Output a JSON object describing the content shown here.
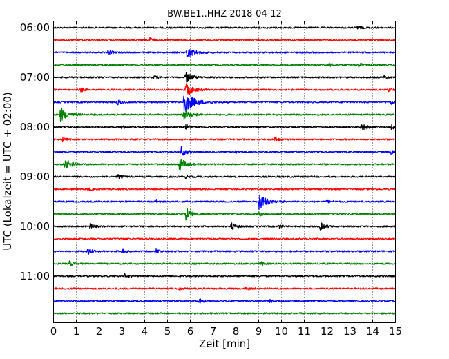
{
  "chart_data": {
    "type": "line",
    "title": "BW.BE1..HHZ 2018-04-12",
    "xlabel": "Zeit  [min]",
    "ylabel": "UTC (Lokalzeit = UTC + 02:00)",
    "xlim": [
      0,
      15
    ],
    "x_ticks": [
      "0",
      "1",
      "2",
      "3",
      "4",
      "5",
      "6",
      "7",
      "8",
      "9",
      "10",
      "11",
      "12",
      "13",
      "14",
      "15"
    ],
    "y_ticks": [
      "06:00",
      "07:00",
      "08:00",
      "09:00",
      "10:00",
      "11:00"
    ],
    "trace_interval_min": 15,
    "grid": "vertical dotted",
    "series_colors": [
      "#000000",
      "#ff0000",
      "#0000ff",
      "#008000"
    ],
    "traces": [
      {
        "start": "06:00",
        "color": "#000000",
        "events": [
          {
            "t": 13.3,
            "amp": 0.5
          }
        ]
      },
      {
        "start": "06:15",
        "color": "#ff0000",
        "events": [
          {
            "t": 4.2,
            "amp": 0.6
          }
        ]
      },
      {
        "start": "06:30",
        "color": "#0000ff",
        "events": [
          {
            "t": 2.4,
            "amp": 0.5
          },
          {
            "t": 5.85,
            "amp": 1.4
          }
        ]
      },
      {
        "start": "06:45",
        "color": "#008000",
        "events": [
          {
            "t": 13.4,
            "amp": 0.5
          },
          {
            "t": 12.1,
            "amp": 0.4
          }
        ]
      },
      {
        "start": "07:00",
        "color": "#000000",
        "events": [
          {
            "t": 4.4,
            "amp": 0.4
          },
          {
            "t": 5.8,
            "amp": 1.2
          },
          {
            "t": 14.5,
            "amp": 0.4
          }
        ]
      },
      {
        "start": "07:15",
        "color": "#ff0000",
        "events": [
          {
            "t": 1.2,
            "amp": 0.4
          },
          {
            "t": 5.8,
            "amp": 1.5
          },
          {
            "t": 14.7,
            "amp": 0.4
          }
        ]
      },
      {
        "start": "07:30",
        "color": "#0000ff",
        "events": [
          {
            "t": 2.8,
            "amp": 0.5
          },
          {
            "t": 5.7,
            "amp": 2.5
          },
          {
            "t": 14.8,
            "amp": 0.5
          }
        ]
      },
      {
        "start": "07:45",
        "color": "#008000",
        "events": [
          {
            "t": 0.3,
            "amp": 1.5
          },
          {
            "t": 5.7,
            "amp": 1.4
          }
        ]
      },
      {
        "start": "08:00",
        "color": "#000000",
        "events": [
          {
            "t": 3.0,
            "amp": 0.4
          },
          {
            "t": 5.8,
            "amp": 0.6
          },
          {
            "t": 13.5,
            "amp": 0.9
          },
          {
            "t": 14.8,
            "amp": 0.5
          }
        ]
      },
      {
        "start": "08:15",
        "color": "#ff0000",
        "events": [
          {
            "t": 9.7,
            "amp": 0.5
          },
          {
            "t": 0.4,
            "amp": 0.4
          }
        ]
      },
      {
        "start": "08:30",
        "color": "#0000ff",
        "events": [
          {
            "t": 5.6,
            "amp": 1.0
          },
          {
            "t": 8.0,
            "amp": 0.3
          },
          {
            "t": 14.8,
            "amp": 0.5
          }
        ]
      },
      {
        "start": "08:45",
        "color": "#008000",
        "events": [
          {
            "t": 0.5,
            "amp": 1.2
          },
          {
            "t": 5.5,
            "amp": 1.4
          }
        ]
      },
      {
        "start": "09:00",
        "color": "#000000",
        "events": [
          {
            "t": 2.8,
            "amp": 0.5
          },
          {
            "t": 5.8,
            "amp": 0.4
          }
        ]
      },
      {
        "start": "09:15",
        "color": "#ff0000",
        "events": [
          {
            "t": 1.5,
            "amp": 0.3
          }
        ]
      },
      {
        "start": "09:30",
        "color": "#0000ff",
        "events": [
          {
            "t": 9.0,
            "amp": 1.8
          },
          {
            "t": 4.5,
            "amp": 0.4
          },
          {
            "t": 12.0,
            "amp": 0.4
          }
        ]
      },
      {
        "start": "09:45",
        "color": "#008000",
        "events": [
          {
            "t": 5.8,
            "amp": 1.3
          },
          {
            "t": 9.0,
            "amp": 0.5
          }
        ]
      },
      {
        "start": "10:00",
        "color": "#000000",
        "events": [
          {
            "t": 1.6,
            "amp": 0.6
          },
          {
            "t": 7.8,
            "amp": 0.8
          },
          {
            "t": 11.7,
            "amp": 0.8
          },
          {
            "t": 9.9,
            "amp": 0.4
          }
        ]
      },
      {
        "start": "10:15",
        "color": "#ff0000",
        "events": []
      },
      {
        "start": "10:30",
        "color": "#0000ff",
        "events": [
          {
            "t": 1.5,
            "amp": 0.6
          },
          {
            "t": 3.0,
            "amp": 0.6
          },
          {
            "t": 4.5,
            "amp": 0.5
          }
        ]
      },
      {
        "start": "10:45",
        "color": "#008000",
        "events": [
          {
            "t": 0.7,
            "amp": 0.5
          },
          {
            "t": 9.1,
            "amp": 0.4
          }
        ]
      },
      {
        "start": "11:00",
        "color": "#000000",
        "events": [
          {
            "t": 3.1,
            "amp": 0.5
          }
        ]
      },
      {
        "start": "11:15",
        "color": "#ff0000",
        "events": [
          {
            "t": 8.4,
            "amp": 0.5
          },
          {
            "t": 5.5,
            "amp": 0.3
          }
        ]
      },
      {
        "start": "11:30",
        "color": "#0000ff",
        "events": [
          {
            "t": 6.4,
            "amp": 0.6
          },
          {
            "t": 9.5,
            "amp": 0.3
          }
        ]
      },
      {
        "start": "11:45",
        "color": "#008000",
        "events": []
      }
    ]
  }
}
